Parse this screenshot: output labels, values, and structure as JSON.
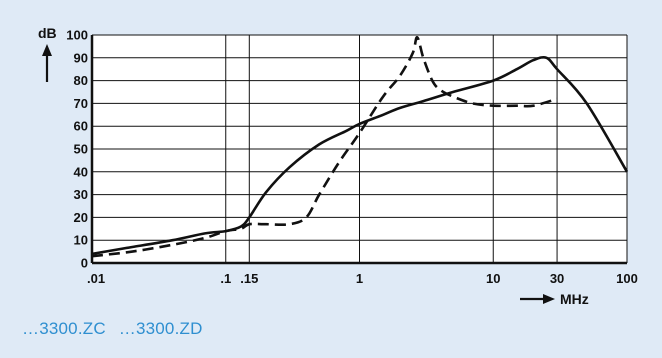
{
  "chart_data": {
    "type": "line",
    "title": "",
    "ylabel": "dB",
    "xlabel": "MHz",
    "x_scale": "log",
    "xlim": [
      0.01,
      100
    ],
    "ylim": [
      0,
      100
    ],
    "grid": true,
    "legend": "none",
    "x_ticks": [
      {
        "value": 0.01,
        "label": ".01"
      },
      {
        "value": 0.1,
        "label": ".1"
      },
      {
        "value": 0.15,
        "label": ".15"
      },
      {
        "value": 1,
        "label": "1"
      },
      {
        "value": 10,
        "label": "10"
      },
      {
        "value": 30,
        "label": "30"
      },
      {
        "value": 100,
        "label": "100"
      }
    ],
    "y_ticks": [
      0,
      10,
      20,
      30,
      40,
      50,
      60,
      70,
      80,
      90,
      100
    ],
    "series": [
      {
        "style": "solid",
        "x": [
          0.01,
          0.02,
          0.04,
          0.07,
          0.1,
          0.13,
          0.15,
          0.2,
          0.3,
          0.5,
          0.8,
          1,
          1.5,
          2,
          3,
          5,
          10,
          15,
          20,
          25,
          30,
          50,
          100
        ],
        "y": [
          4,
          7,
          10,
          13,
          14,
          16,
          20,
          31,
          42,
          52,
          58,
          61,
          65,
          68,
          71,
          75,
          80,
          85,
          89,
          90,
          85,
          70,
          40
        ]
      },
      {
        "style": "dashed",
        "x": [
          0.01,
          0.02,
          0.04,
          0.07,
          0.1,
          0.13,
          0.15,
          0.2,
          0.3,
          0.4,
          0.5,
          0.7,
          1,
          1.5,
          2,
          2.5,
          2.7,
          3,
          3.5,
          4,
          5,
          7,
          10,
          15,
          20,
          30
        ],
        "y": [
          3,
          5,
          8,
          11,
          14,
          15,
          17,
          17,
          17,
          20,
          30,
          44,
          57,
          73,
          82,
          92,
          99,
          90,
          80,
          76,
          73,
          70,
          69,
          69,
          69,
          72
        ]
      }
    ]
  },
  "caption": {
    "items": [
      "…3300.ZC",
      "…3300.ZD"
    ]
  }
}
